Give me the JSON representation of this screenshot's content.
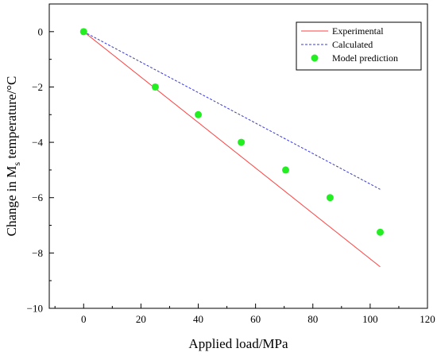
{
  "chart_data": {
    "type": "line",
    "xlabel": "Applied load/MPa",
    "ylabel_parts": [
      "Change in M",
      "s",
      " temperature/°C"
    ],
    "xlim": [
      -12,
      120
    ],
    "ylim": [
      -10,
      1
    ],
    "xticks": [
      0,
      20,
      40,
      60,
      80,
      100,
      120
    ],
    "xtick_labels": [
      "0",
      "20",
      "40",
      "60",
      "80",
      "100",
      "120"
    ],
    "yticks": [
      0,
      -2,
      -4,
      -6,
      -8,
      -10
    ],
    "ytick_labels": [
      "0",
      "−2",
      "−4",
      "−6",
      "−8",
      "−10"
    ],
    "grid": false,
    "legend_position": "top-right",
    "series": [
      {
        "name": "Experimental",
        "kind": "line",
        "style": "solid",
        "color": "#ff4040",
        "x": [
          0,
          103.5
        ],
        "y": [
          0,
          -8.5
        ]
      },
      {
        "name": "Calculated",
        "kind": "line",
        "style": "dashed",
        "color": "#3838d8",
        "x": [
          0,
          103.5
        ],
        "y": [
          0,
          -5.7
        ]
      },
      {
        "name": "Model prediction",
        "kind": "scatter",
        "color": "#22ee22",
        "x": [
          0,
          25,
          40,
          55,
          70.5,
          86,
          103.5
        ],
        "y": [
          0,
          -2,
          -3,
          -4,
          -5,
          -6,
          -7.25
        ]
      }
    ]
  }
}
